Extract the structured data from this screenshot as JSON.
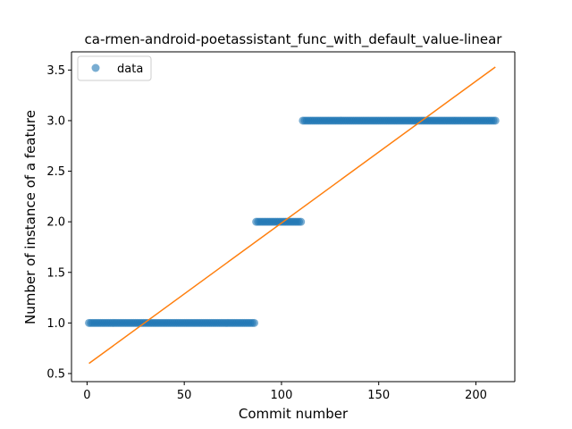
{
  "chart_data": {
    "type": "scatter",
    "title": "ca-rmen-android-poetassistant_func_with_default_value-linear",
    "xlabel": "Commit number",
    "ylabel": "Number of instance of a feature",
    "xlim": [
      -8,
      220
    ],
    "ylim": [
      0.42,
      3.68
    ],
    "xticks": [
      0,
      50,
      100,
      150,
      200
    ],
    "yticks": [
      0.5,
      1.0,
      1.5,
      2.0,
      2.5,
      3.0,
      3.5
    ],
    "ytick_labels": [
      "0.5",
      "1.0",
      "1.5",
      "2.0",
      "2.5",
      "3.0",
      "3.5"
    ],
    "legend": {
      "placement": "top-left",
      "entries": [
        "data"
      ]
    },
    "colors": {
      "data": "#1f77b4",
      "fit": "#ff7f0e"
    },
    "series": [
      {
        "name": "data",
        "kind": "scatter",
        "segments": [
          {
            "x_start": 1,
            "x_end": 86,
            "y": 1.0
          },
          {
            "x_start": 87,
            "x_end": 110,
            "y": 2.0
          },
          {
            "x_start": 111,
            "x_end": 210,
            "y": 3.0
          }
        ]
      },
      {
        "kind": "line",
        "x": [
          1,
          210
        ],
        "y": [
          0.6,
          3.53
        ]
      }
    ]
  }
}
